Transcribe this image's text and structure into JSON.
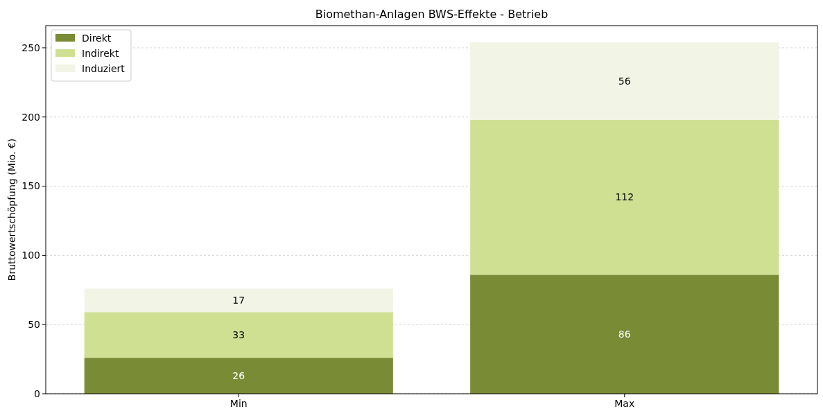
{
  "chart_data": {
    "type": "bar",
    "title": "Biomethan-Anlagen BWS-Effekte - Betrieb",
    "ylabel": "Bruttowertschöpfung (Mio. €)",
    "categories": [
      "Min",
      "Max"
    ],
    "stacked": true,
    "series": [
      {
        "name": "Direkt",
        "color": "#7a8b35",
        "values": [
          26,
          86
        ]
      },
      {
        "name": "Indirekt",
        "color": "#d0e093",
        "values": [
          33,
          112
        ]
      },
      {
        "name": "Induziert",
        "color": "#f2f4e6",
        "values": [
          17,
          56
        ]
      }
    ],
    "ylim": [
      0,
      266
    ],
    "yticks": [
      0,
      50,
      100,
      150,
      200,
      250
    ],
    "grid": "y",
    "legend": "top left",
    "data_labels": true
  }
}
